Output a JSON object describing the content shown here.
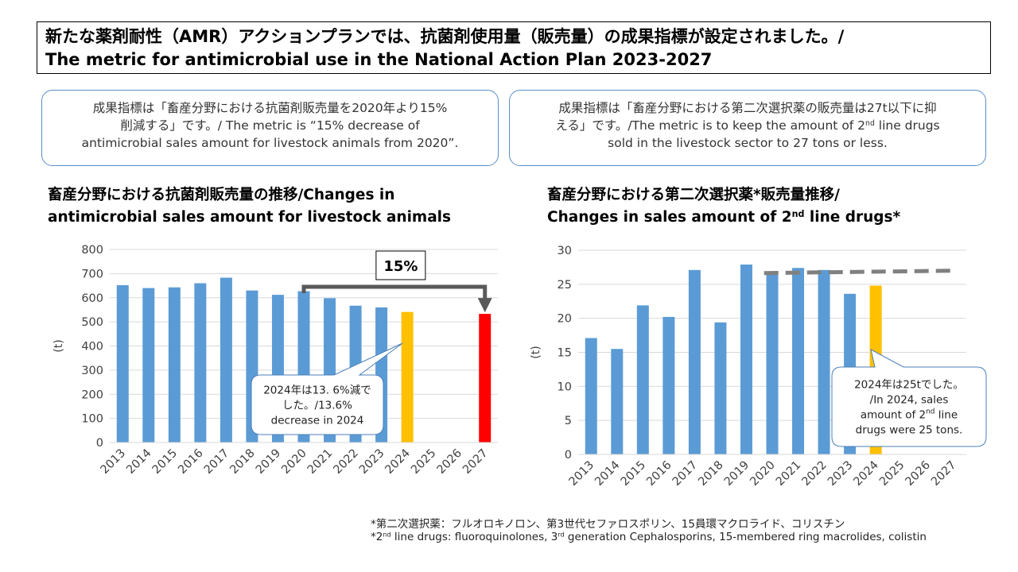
{
  "header": {
    "title_jp": "新たな薬剤耐性（AMR）アクションプランでは、抗菌剤使用量（販売量）の成果指標が設定されました。/",
    "title_en": "The metric for antimicrobial use in the National Action Plan 2023-2027"
  },
  "metrics": {
    "left_line1": "成果指標は「畜産分野における抗菌剤販売量を2020年より15%",
    "left_line2": "削減する」です。/ The metric is “15% decrease of",
    "left_line3": "antimicrobial sales amount for livestock animals  from 2020”.",
    "right_line1": "成果指標は「畜産分野における第二次選択薬の販売量は27t以下に抑",
    "right_line2a": "える」です。/The metric is to keep the amount of 2",
    "right_line2_sup": "nd",
    "right_line2b": " line drugs",
    "right_line3": "sold in the livestock sector to 27 tons or less."
  },
  "chart_titles": {
    "left_line1": "畜産分野における抗菌剤販売量の推移/Changes in",
    "left_line2": "antimicrobial sales amount for livestock animals",
    "right_line1": "畜産分野における第二次選択薬*販売量推移/",
    "right_line2a": "Changes in sales amount of 2",
    "right_line2_sup": "nd",
    "right_line2b": " line drugs*"
  },
  "footnotes": {
    "line1": "*第二次選択薬：フルオロキノロン、第3世代セファロスポリン、15員環マクロライド、コリスチン",
    "line2_a": "*2",
    "line2_sup_a": "nd",
    "line2_b": " line drugs: fluoroquinolones, 3",
    "line2_sup_b": "rd",
    "line2_c": " generation Cephalosporins, 15-membered ring macrolides, colistin"
  },
  "colors": {
    "bar": "#5b9bd5",
    "highlight": "#ffc000",
    "target": "#ff0000",
    "arrow": "#595959",
    "target_line": "#808080",
    "grid": "#d9d9d9",
    "axis_text": "#404040"
  },
  "chart_data": [
    {
      "type": "bar",
      "title": "畜産分野における抗菌剤販売量の推移/Changes in antimicrobial sales amount for livestock animals",
      "ylabel": "(t)",
      "ylim": [
        0,
        800
      ],
      "yticks": [
        "0",
        "100",
        "200",
        "300",
        "400",
        "500",
        "600",
        "700",
        "800"
      ],
      "grid": true,
      "categories": [
        "2013",
        "2014",
        "2015",
        "2016",
        "2017",
        "2018",
        "2019",
        "2020",
        "2021",
        "2022",
        "2023",
        "2024",
        "2025",
        "2026",
        "2027"
      ],
      "values": [
        652,
        640,
        643,
        660,
        683,
        630,
        612,
        627,
        598,
        567,
        560,
        541,
        null,
        null,
        533
      ],
      "bar_roles": [
        "normal",
        "normal",
        "normal",
        "normal",
        "normal",
        "normal",
        "normal",
        "normal",
        "normal",
        "normal",
        "normal",
        "highlight",
        "none",
        "none",
        "target"
      ],
      "arrow": {
        "from": "2020",
        "to": "2027",
        "label": "15%"
      },
      "callout": {
        "target": "2024",
        "line1": "2024年は13. 6%減で",
        "line2": "した。/13.6%",
        "line3": "decrease in 2024"
      }
    },
    {
      "type": "bar",
      "title": "畜産分野における第二次選択薬*販売量推移/Changes in sales amount of 2nd line drugs*",
      "ylabel": "(t)",
      "ylim": [
        0,
        30
      ],
      "yticks": [
        "0",
        "5",
        "10",
        "15",
        "20",
        "25",
        "30"
      ],
      "grid": true,
      "categories": [
        "2013",
        "2014",
        "2015",
        "2016",
        "2017",
        "2018",
        "2019",
        "2020",
        "2021",
        "2022",
        "2023",
        "2024",
        "2025",
        "2026",
        "2027"
      ],
      "values": [
        17.1,
        15.5,
        21.9,
        20.2,
        27.1,
        19.4,
        27.9,
        26.7,
        27.4,
        27.1,
        23.6,
        24.8,
        null,
        null,
        null
      ],
      "bar_roles": [
        "normal",
        "normal",
        "normal",
        "normal",
        "normal",
        "normal",
        "normal",
        "normal",
        "normal",
        "normal",
        "normal",
        "highlight",
        "none",
        "none",
        "none"
      ],
      "target_line": {
        "value": 27,
        "from": "2020",
        "to": "2027"
      },
      "callout": {
        "target": "2024",
        "line1": "2024年は25tでした。",
        "line2": "/In 2024, sales",
        "line3a": "amount of 2",
        "line3_sup": "nd",
        "line3b": " line",
        "line4": "drugs were 25 tons."
      }
    }
  ]
}
